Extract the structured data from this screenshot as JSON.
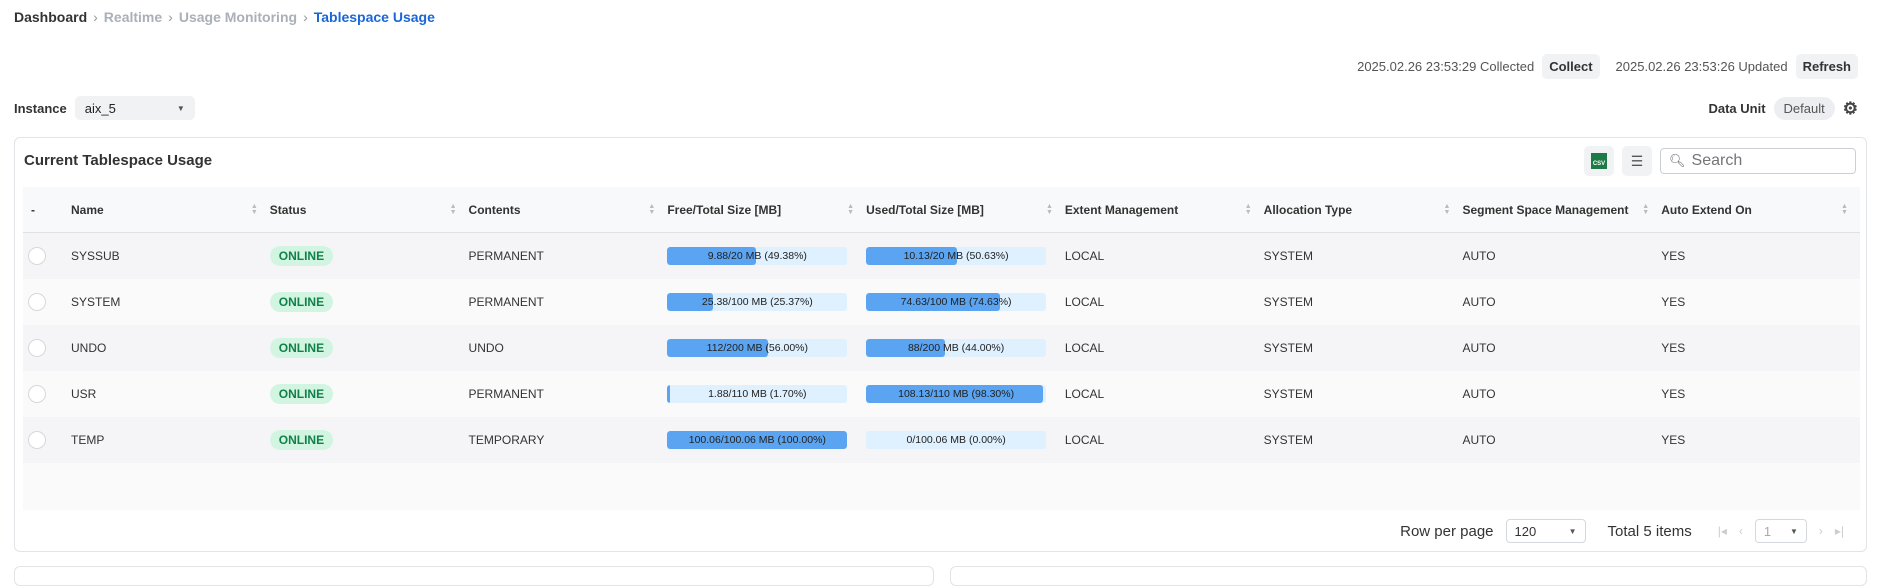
{
  "breadcrumb": [
    "Dashboard",
    "Realtime",
    "Usage Monitoring",
    "Tablespace Usage"
  ],
  "collected": {
    "time": "2025.02.26 23:53:29 Collected",
    "button": "Collect"
  },
  "updated": {
    "time": "2025.02.26 23:53:26 Updated",
    "button": "Refresh"
  },
  "instance": {
    "label": "Instance",
    "value": "aix_5"
  },
  "data_unit": {
    "label": "Data Unit",
    "value": "Default"
  },
  "card": {
    "title": "Current Tablespace Usage",
    "search_placeholder": "Search",
    "csv_label": "CSV"
  },
  "columns": [
    "-",
    "Name",
    "Status",
    "Contents",
    "Free/Total Size [MB]",
    "Used/Total Size [MB]",
    "Extent Management",
    "Allocation Type",
    "Segment Space Management",
    "Auto Extend On"
  ],
  "rows": [
    {
      "name": "SYSSUB",
      "status": "ONLINE",
      "contents": "PERMANENT",
      "free": "9.88/20 MB (49.38%)",
      "free_pct": 49.38,
      "used": "10.13/20 MB (50.63%)",
      "used_pct": 50.63,
      "extent": "LOCAL",
      "alloc": "SYSTEM",
      "segment": "AUTO",
      "auto": "YES"
    },
    {
      "name": "SYSTEM",
      "status": "ONLINE",
      "contents": "PERMANENT",
      "free": "25.38/100 MB (25.37%)",
      "free_pct": 25.37,
      "used": "74.63/100 MB (74.63%)",
      "used_pct": 74.63,
      "extent": "LOCAL",
      "alloc": "SYSTEM",
      "segment": "AUTO",
      "auto": "YES"
    },
    {
      "name": "UNDO",
      "status": "ONLINE",
      "contents": "UNDO",
      "free": "112/200 MB (56.00%)",
      "free_pct": 56.0,
      "used": "88/200 MB (44.00%)",
      "used_pct": 44.0,
      "extent": "LOCAL",
      "alloc": "SYSTEM",
      "segment": "AUTO",
      "auto": "YES"
    },
    {
      "name": "USR",
      "status": "ONLINE",
      "contents": "PERMANENT",
      "free": "1.88/110 MB (1.70%)",
      "free_pct": 1.7,
      "used": "108.13/110 MB (98.30%)",
      "used_pct": 98.3,
      "extent": "LOCAL",
      "alloc": "SYSTEM",
      "segment": "AUTO",
      "auto": "YES"
    },
    {
      "name": "TEMP",
      "status": "ONLINE",
      "contents": "TEMPORARY",
      "free": "100.06/100.06 MB (100.00%)",
      "free_pct": 100.0,
      "used": "0/100.06 MB (0.00%)",
      "used_pct": 0.0,
      "extent": "LOCAL",
      "alloc": "SYSTEM",
      "segment": "AUTO",
      "auto": "YES"
    }
  ],
  "pagination": {
    "row_label": "Row per page",
    "rows_per_page": "120",
    "total": "Total 5 items",
    "page": "1"
  },
  "colors": {
    "accent": "#1a66d9",
    "bar_fill": "#5aa4f2",
    "bar_bg": "#dff0fe",
    "online_bg": "#d2f5e1",
    "online_text": "#12804a"
  }
}
